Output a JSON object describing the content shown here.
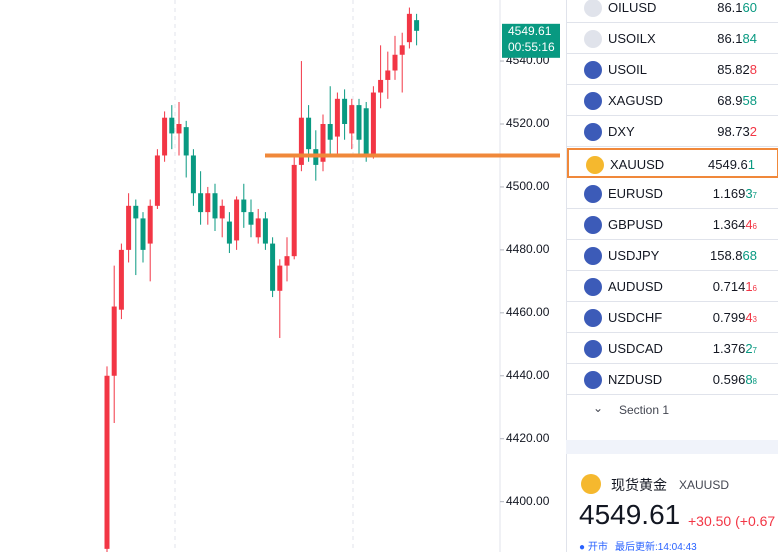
{
  "chart": {
    "type": "candlestick",
    "up_color": "#f23645",
    "down_color": "#089981",
    "ylim": [
      4384,
      4559.4
    ],
    "yticks": [
      {
        "value": 4540,
        "label": "4540.00"
      },
      {
        "value": 4520,
        "label": "4520.00"
      },
      {
        "value": 4500,
        "label": "4500.00"
      },
      {
        "value": 4480,
        "label": "4480.00"
      },
      {
        "value": 4460,
        "label": "4460.00"
      },
      {
        "value": 4440,
        "label": "4440.00"
      },
      {
        "value": 4420,
        "label": "4420.00"
      },
      {
        "value": 4400,
        "label": "4400.00"
      }
    ],
    "current_price": {
      "value": 4549.61,
      "label": "4549.61",
      "countdown": "00:55:16"
    },
    "level_line": {
      "value": 4510,
      "color": "#f0883a"
    },
    "candles": [
      {
        "open": 4385,
        "close": 4440,
        "high": 4443,
        "low": 4384
      },
      {
        "open": 4440,
        "close": 4462,
        "high": 4475,
        "low": 4425
      },
      {
        "open": 4461,
        "close": 4480,
        "high": 4482,
        "low": 4458
      },
      {
        "open": 4480,
        "close": 4494,
        "high": 4498,
        "low": 4476
      },
      {
        "open": 4494,
        "close": 4490,
        "high": 4496,
        "low": 4472
      },
      {
        "open": 4490,
        "close": 4480,
        "high": 4492,
        "low": 4476
      },
      {
        "open": 4482,
        "close": 4494,
        "high": 4496,
        "low": 4470
      },
      {
        "open": 4494,
        "close": 4510,
        "high": 4512,
        "low": 4493
      },
      {
        "open": 4510,
        "close": 4522,
        "high": 4524,
        "low": 4508
      },
      {
        "open": 4522,
        "close": 4517,
        "high": 4526,
        "low": 4512
      },
      {
        "open": 4517,
        "close": 4520,
        "high": 4527,
        "low": 4510
      },
      {
        "open": 4519,
        "close": 4510,
        "high": 4521,
        "low": 4503
      },
      {
        "open": 4510,
        "close": 4498,
        "high": 4512,
        "low": 4494
      },
      {
        "open": 4498,
        "close": 4492,
        "high": 4505,
        "low": 4488
      },
      {
        "open": 4492,
        "close": 4498,
        "high": 4500,
        "low": 4488
      },
      {
        "open": 4498,
        "close": 4490,
        "high": 4501,
        "low": 4486
      },
      {
        "open": 4490,
        "close": 4494,
        "high": 4496,
        "low": 4484
      },
      {
        "open": 4489,
        "close": 4482,
        "high": 4492,
        "low": 4479
      },
      {
        "open": 4483,
        "close": 4496,
        "high": 4497,
        "low": 4480
      },
      {
        "open": 4496,
        "close": 4492,
        "high": 4501,
        "low": 4487
      },
      {
        "open": 4492,
        "close": 4488,
        "high": 4496,
        "low": 4484
      },
      {
        "open": 4484,
        "close": 4490,
        "high": 4493,
        "low": 4482
      },
      {
        "open": 4490,
        "close": 4482,
        "high": 4492,
        "low": 4480
      },
      {
        "open": 4482,
        "close": 4467,
        "high": 4484,
        "low": 4465
      },
      {
        "open": 4467,
        "close": 4475,
        "high": 4477,
        "low": 4452
      },
      {
        "open": 4475,
        "close": 4478,
        "high": 4484,
        "low": 4470
      },
      {
        "open": 4478,
        "close": 4507,
        "high": 4510,
        "low": 4477
      },
      {
        "open": 4507,
        "close": 4522,
        "high": 4540,
        "low": 4505
      },
      {
        "open": 4522,
        "close": 4512,
        "high": 4526,
        "low": 4508
      },
      {
        "open": 4512,
        "close": 4507,
        "high": 4518,
        "low": 4502
      },
      {
        "open": 4508,
        "close": 4520,
        "high": 4523,
        "low": 4505
      },
      {
        "open": 4520,
        "close": 4515,
        "high": 4532,
        "low": 4510
      },
      {
        "open": 4516,
        "close": 4528,
        "high": 4530,
        "low": 4510
      },
      {
        "open": 4528,
        "close": 4520,
        "high": 4531,
        "low": 4515
      },
      {
        "open": 4517,
        "close": 4526,
        "high": 4528,
        "low": 4512
      },
      {
        "open": 4526,
        "close": 4515,
        "high": 4528,
        "low": 4510
      },
      {
        "open": 4525,
        "close": 4510,
        "high": 4527,
        "low": 4508
      },
      {
        "open": 4510,
        "close": 4530,
        "high": 4532,
        "low": 4509
      },
      {
        "open": 4530,
        "close": 4534,
        "high": 4545,
        "low": 4525
      },
      {
        "open": 4534,
        "close": 4537,
        "high": 4543,
        "low": 4528
      },
      {
        "open": 4537,
        "close": 4542,
        "high": 4548,
        "low": 4534
      },
      {
        "open": 4542,
        "close": 4545,
        "high": 4549,
        "low": 4530
      },
      {
        "open": 4546,
        "close": 4555,
        "high": 4557,
        "low": 4544
      },
      {
        "open": 4553,
        "close": 4549.61,
        "high": 4555,
        "low": 4545
      }
    ]
  },
  "watchlist": {
    "rows": [
      {
        "symbol": "OILUSD",
        "price": [
          "86.1",
          "60",
          ""
        ],
        "color": "#089981"
      },
      {
        "symbol": "USOILX",
        "price": [
          "86.1",
          "84",
          ""
        ],
        "color": "#089981"
      },
      {
        "symbol": "USOIL",
        "price": [
          "85.82",
          "8",
          ""
        ],
        "color": "#f23645"
      },
      {
        "symbol": "XAGUSD",
        "price": [
          "68.9",
          "58",
          ""
        ],
        "color": "#089981"
      },
      {
        "symbol": "DXY",
        "price": [
          "98.73",
          "2",
          ""
        ],
        "color": "#f23645"
      },
      {
        "symbol": "XAUUSD",
        "price": [
          "4549.6",
          "1",
          ""
        ],
        "color": "#089981"
      },
      {
        "symbol": "EURUSD",
        "price": [
          "1.169",
          "3",
          "7"
        ],
        "color": "#089981"
      },
      {
        "symbol": "GBPUSD",
        "price": [
          "1.364",
          "4",
          "6"
        ],
        "color": "#f23645"
      },
      {
        "symbol": "USDJPY",
        "price": [
          "158.8",
          "68",
          ""
        ],
        "color": "#089981"
      },
      {
        "symbol": "AUDUSD",
        "price": [
          "0.714",
          "1",
          "6"
        ],
        "color": "#f23645"
      },
      {
        "symbol": "USDCHF",
        "price": [
          "0.799",
          "4",
          "3"
        ],
        "color": "#f23645"
      },
      {
        "symbol": "USDCAD",
        "price": [
          "1.376",
          "2",
          "7"
        ],
        "color": "#089981"
      },
      {
        "symbol": "NZDUSD",
        "price": [
          "0.596",
          "8",
          "8"
        ],
        "color": "#089981"
      }
    ],
    "section": "Section 1"
  },
  "detail": {
    "name": "现货黄金",
    "symbol": "XAUUSD",
    "price": "4549.61",
    "change": "+30.50 (+0.67",
    "status": "开市",
    "updated": "最后更新:14:04:43"
  }
}
